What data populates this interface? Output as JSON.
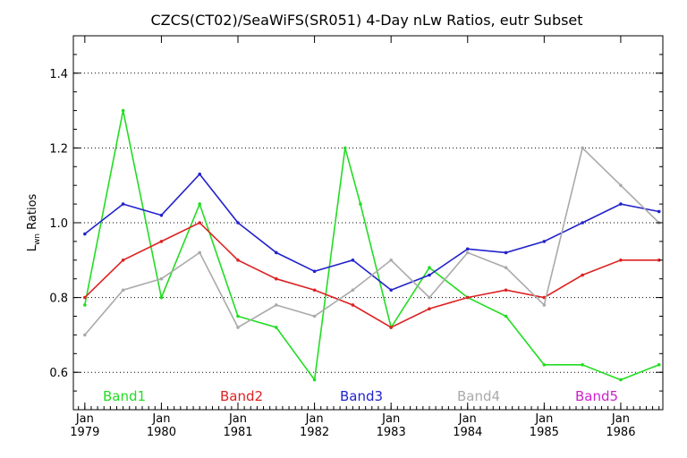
{
  "chart_data": {
    "type": "line",
    "title": "CZCS(CT02)/SeaWiFS(SR051) 4-Day nLw Ratios, eutr Subset",
    "ylabel_main": "L",
    "ylabel_sub": "wn",
    "ylabel_rest": " Ratios",
    "xlim": [
      1978.85,
      1986.55
    ],
    "ylim": [
      0.5,
      1.5
    ],
    "grid": true,
    "y_ticks": [
      0.6,
      0.8,
      1.0,
      1.2,
      1.4
    ],
    "y_tick_labels": [
      "0.6",
      "0.8",
      "1.0",
      "1.2",
      "1.4"
    ],
    "x_ticks": [
      {
        "x": 1979.0,
        "label": "Jan",
        "year": "1979"
      },
      {
        "x": 1980.0,
        "label": "Jan",
        "year": "1980"
      },
      {
        "x": 1981.0,
        "label": "Jan",
        "year": "1981"
      },
      {
        "x": 1982.0,
        "label": "Jan",
        "year": "1982"
      },
      {
        "x": 1983.0,
        "label": "Jan",
        "year": "1983"
      },
      {
        "x": 1984.0,
        "label": "Jan",
        "year": "1984"
      },
      {
        "x": 1985.0,
        "label": "Jan",
        "year": "1985"
      },
      {
        "x": 1986.0,
        "label": "Jan",
        "year": "1986"
      }
    ],
    "series": [
      {
        "name": "Band1",
        "color": "#22dd22",
        "x": [
          1979.0,
          1979.5,
          1980.0,
          1980.5,
          1981.0,
          1981.5,
          1982.0,
          1982.4,
          1982.6,
          1983.0,
          1983.5,
          1984.0,
          1984.5,
          1985.0,
          1985.5,
          1986.0,
          1986.5
        ],
        "y": [
          0.78,
          1.3,
          0.8,
          1.05,
          0.75,
          0.72,
          0.58,
          1.2,
          1.05,
          0.72,
          0.88,
          0.8,
          0.75,
          0.62,
          0.62,
          0.58,
          0.62
        ]
      },
      {
        "name": "Band2",
        "color": "#dd2222",
        "x": [
          1979.0,
          1979.5,
          1980.0,
          1980.5,
          1981.0,
          1981.5,
          1982.0,
          1982.5,
          1983.0,
          1983.5,
          1984.0,
          1984.5,
          1985.0,
          1985.5,
          1986.0,
          1986.5
        ],
        "y": [
          0.8,
          0.9,
          0.95,
          1.0,
          0.9,
          0.85,
          0.82,
          0.78,
          0.72,
          0.77,
          0.8,
          0.82,
          0.8,
          0.86,
          0.9,
          0.9
        ]
      },
      {
        "name": "Band3",
        "color": "#2222cc",
        "x": [
          1979.0,
          1979.5,
          1980.0,
          1980.5,
          1981.0,
          1981.5,
          1982.0,
          1982.5,
          1983.0,
          1983.5,
          1984.0,
          1984.5,
          1985.0,
          1985.5,
          1986.0,
          1986.5
        ],
        "y": [
          0.97,
          1.05,
          1.02,
          1.13,
          1.0,
          0.92,
          0.87,
          0.9,
          0.82,
          0.86,
          0.93,
          0.92,
          0.95,
          1.0,
          1.05,
          1.03
        ]
      },
      {
        "name": "Band4",
        "color": "#aaaaaa",
        "x": [
          1979.0,
          1979.5,
          1980.0,
          1980.5,
          1981.0,
          1981.5,
          1982.0,
          1982.5,
          1983.0,
          1983.5,
          1984.0,
          1984.5,
          1985.0,
          1985.5,
          1986.0,
          1986.5
        ],
        "y": [
          0.7,
          0.82,
          0.85,
          0.92,
          0.72,
          0.78,
          0.75,
          0.82,
          0.9,
          0.8,
          0.92,
          0.88,
          0.78,
          1.2,
          1.1,
          1.0
        ]
      },
      {
        "name": "Band5",
        "color": "#cc22cc",
        "x": [],
        "y": []
      }
    ]
  }
}
